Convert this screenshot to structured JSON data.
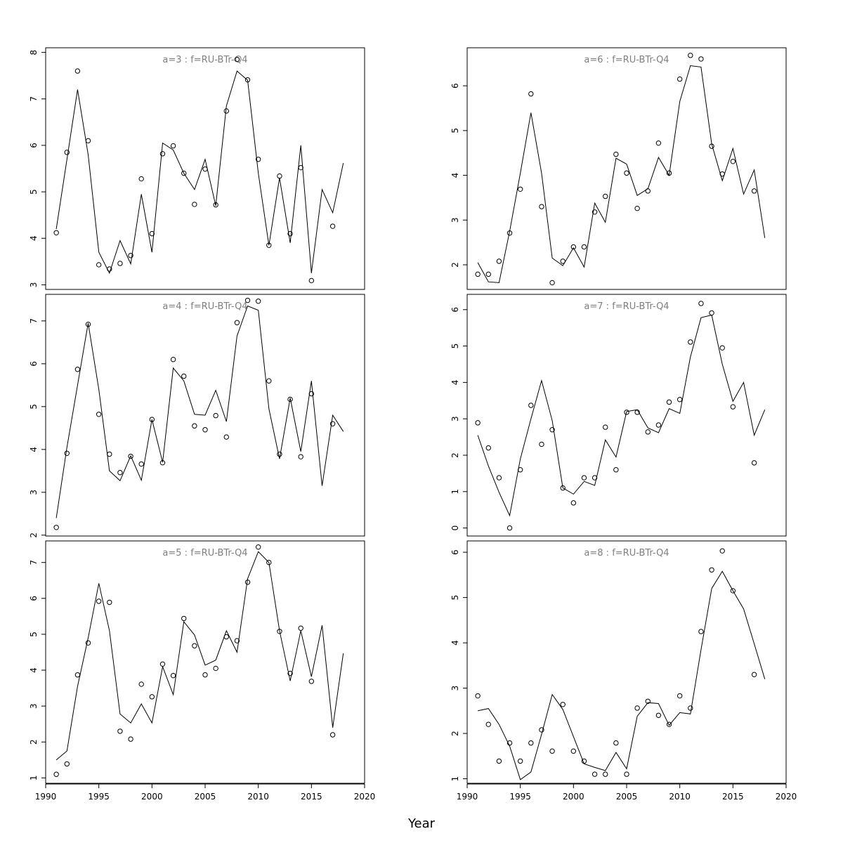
{
  "figure": {
    "xlabel": "Year"
  },
  "chart_data": [
    {
      "type": "line",
      "title": "a=3  :  f=RU-BTr-Q4",
      "xlim": [
        1990,
        2020
      ],
      "ylim": [
        2.9,
        8.1
      ],
      "yticks": [
        3,
        4,
        5,
        6,
        7,
        8
      ],
      "fitted": {
        "x": [
          1991,
          1992,
          1993,
          1994,
          1995,
          1996,
          1997,
          1998,
          1999,
          2000,
          2001,
          2002,
          2003,
          2004,
          2005,
          2006,
          2007,
          2008,
          2009,
          2010,
          2011,
          2012,
          2013,
          2014,
          2015,
          2016,
          2017,
          2018
        ],
        "y": [
          4.2,
          5.7,
          7.2,
          5.8,
          3.7,
          3.25,
          3.95,
          3.45,
          4.95,
          3.7,
          6.05,
          5.9,
          5.4,
          5.05,
          5.7,
          4.7,
          6.85,
          7.6,
          7.4,
          5.4,
          3.85,
          5.3,
          3.9,
          6.0,
          3.25,
          5.05,
          4.55,
          5.62
        ]
      },
      "observed": {
        "x": [
          1991,
          1992,
          1993,
          1994,
          1995,
          1996,
          1997,
          1998,
          1999,
          2000,
          2001,
          2002,
          2003,
          2004,
          2005,
          2006,
          2007,
          2008,
          2009,
          2010,
          2011,
          2012,
          2013,
          2014,
          2015,
          2017
        ],
        "y": [
          4.12,
          5.85,
          7.6,
          6.1,
          3.43,
          3.34,
          3.46,
          3.63,
          5.28,
          4.1,
          5.82,
          5.99,
          5.4,
          4.73,
          5.49,
          4.72,
          6.74,
          7.85,
          7.41,
          5.7,
          3.85,
          5.34,
          4.1,
          5.52,
          3.09,
          4.26
        ]
      }
    },
    {
      "type": "line",
      "title": "a=6  :  f=RU-BTr-Q4",
      "xlim": [
        1990,
        2020
      ],
      "ylim": [
        1.45,
        6.85
      ],
      "yticks": [
        2,
        3,
        4,
        5,
        6
      ],
      "fitted": {
        "x": [
          1991,
          1992,
          1993,
          1994,
          1995,
          1996,
          1997,
          1998,
          1999,
          2000,
          2001,
          2002,
          2003,
          2004,
          2005,
          2006,
          2007,
          2008,
          2009,
          2010,
          2011,
          2012,
          2013,
          2014,
          2015,
          2016,
          2017,
          2018
        ],
        "y": [
          2.05,
          1.62,
          1.6,
          2.75,
          4.05,
          5.4,
          4.05,
          2.15,
          1.98,
          2.38,
          1.95,
          3.38,
          2.95,
          4.38,
          4.25,
          3.55,
          3.7,
          4.4,
          4.0,
          5.65,
          6.45,
          6.42,
          4.7,
          3.88,
          4.6,
          3.58,
          4.12,
          2.6
        ]
      },
      "observed": {
        "x": [
          1991,
          1992,
          1993,
          1994,
          1995,
          1996,
          1997,
          1998,
          1999,
          2000,
          2001,
          2002,
          2003,
          2004,
          2005,
          2006,
          2007,
          2008,
          2009,
          2010,
          2011,
          2012,
          2013,
          2014,
          2015,
          2017
        ],
        "y": [
          1.79,
          1.79,
          2.08,
          2.71,
          3.69,
          5.82,
          3.3,
          1.6,
          2.08,
          2.4,
          2.4,
          3.18,
          3.53,
          4.47,
          4.05,
          3.26,
          3.65,
          4.72,
          4.05,
          6.15,
          6.68,
          6.6,
          4.65,
          4.03,
          4.31,
          3.65
        ]
      }
    },
    {
      "type": "line",
      "title": "a=4  :  f=RU-BTr-Q4",
      "xlim": [
        1990,
        2020
      ],
      "ylim": [
        1.98,
        7.62
      ],
      "yticks": [
        2,
        3,
        4,
        5,
        6,
        7
      ],
      "fitted": {
        "x": [
          1991,
          1992,
          1993,
          1994,
          1995,
          1996,
          1997,
          1998,
          1999,
          2000,
          2001,
          2002,
          2003,
          2004,
          2005,
          2006,
          2007,
          2008,
          2009,
          2010,
          2011,
          2012,
          2013,
          2014,
          2015,
          2016,
          2017,
          2018
        ],
        "y": [
          2.4,
          4.05,
          5.5,
          6.95,
          5.4,
          3.5,
          3.27,
          3.85,
          3.28,
          4.7,
          3.7,
          5.9,
          5.6,
          4.82,
          4.8,
          5.38,
          4.65,
          6.65,
          7.35,
          7.25,
          4.95,
          3.78,
          5.2,
          3.95,
          5.6,
          3.15,
          4.8,
          4.42
        ]
      },
      "observed": {
        "x": [
          1991,
          1992,
          1993,
          1994,
          1995,
          1996,
          1997,
          1998,
          1999,
          2000,
          2001,
          2002,
          2003,
          2004,
          2005,
          2006,
          2007,
          2008,
          2009,
          2010,
          2011,
          2012,
          2013,
          2014,
          2015,
          2017
        ],
        "y": [
          2.18,
          3.91,
          5.87,
          6.92,
          4.82,
          3.89,
          3.46,
          3.84,
          3.66,
          4.7,
          3.69,
          6.1,
          5.71,
          4.55,
          4.46,
          4.79,
          4.29,
          6.96,
          7.48,
          7.46,
          5.6,
          3.89,
          5.17,
          3.83,
          5.3,
          4.6
        ]
      }
    },
    {
      "type": "line",
      "title": "a=7  :  f=RU-BTr-Q4",
      "xlim": [
        1990,
        2020
      ],
      "ylim": [
        -0.22,
        6.42
      ],
      "yticks": [
        0,
        1,
        2,
        3,
        4,
        5,
        6
      ],
      "fitted": {
        "x": [
          1991,
          1992,
          1993,
          1994,
          1995,
          1996,
          1997,
          1998,
          1999,
          2000,
          2001,
          2002,
          2003,
          2004,
          2005,
          2006,
          2007,
          2008,
          2009,
          2010,
          2011,
          2012,
          2013,
          2014,
          2015,
          2016,
          2017,
          2018
        ],
        "y": [
          2.55,
          1.7,
          0.98,
          0.34,
          1.9,
          3.0,
          4.05,
          2.95,
          1.1,
          0.93,
          1.28,
          1.17,
          2.42,
          1.95,
          3.2,
          3.25,
          2.75,
          2.62,
          3.28,
          3.15,
          4.7,
          5.78,
          5.85,
          4.5,
          3.48,
          4.0,
          2.55,
          3.25
        ]
      },
      "observed": {
        "x": [
          1991,
          1992,
          1993,
          1994,
          1995,
          1996,
          1997,
          1998,
          1999,
          2000,
          2001,
          2002,
          2003,
          2004,
          2005,
          2006,
          2007,
          2008,
          2009,
          2010,
          2011,
          2012,
          2013,
          2014,
          2015,
          2017
        ],
        "y": [
          2.89,
          2.2,
          1.38,
          0.0,
          1.6,
          3.37,
          2.3,
          2.7,
          1.1,
          0.69,
          1.38,
          1.38,
          2.77,
          1.6,
          3.18,
          3.18,
          2.64,
          2.83,
          3.46,
          3.53,
          5.11,
          6.17,
          5.91,
          4.95,
          3.33,
          1.79
        ]
      }
    },
    {
      "type": "line",
      "title": "a=5  :  f=RU-BTr-Q4",
      "xlim": [
        1990,
        2020
      ],
      "ylim": [
        0.85,
        7.6
      ],
      "yticks": [
        1,
        2,
        3,
        4,
        5,
        6,
        7
      ],
      "fitted": {
        "x": [
          1991,
          1992,
          1993,
          1994,
          1995,
          1996,
          1997,
          1998,
          1999,
          2000,
          2001,
          2002,
          2003,
          2004,
          2005,
          2006,
          2007,
          2008,
          2009,
          2010,
          2011,
          2012,
          2013,
          2014,
          2015,
          2016,
          2017,
          2018
        ],
        "y": [
          1.5,
          1.75,
          3.55,
          4.9,
          6.42,
          5.1,
          2.78,
          2.53,
          3.06,
          2.53,
          4.1,
          3.32,
          5.35,
          4.98,
          4.14,
          4.28,
          5.1,
          4.5,
          6.55,
          7.3,
          7.0,
          5.1,
          3.7,
          5.1,
          3.82,
          5.25,
          2.4,
          4.47
        ]
      },
      "observed": {
        "x": [
          1991,
          1992,
          1993,
          1994,
          1995,
          1996,
          1997,
          1998,
          1999,
          2000,
          2001,
          2002,
          2003,
          2004,
          2005,
          2006,
          2007,
          2008,
          2009,
          2010,
          2011,
          2012,
          2013,
          2014,
          2015,
          2017
        ],
        "y": [
          1.1,
          1.39,
          3.87,
          4.76,
          5.92,
          5.89,
          2.3,
          2.08,
          3.61,
          3.26,
          4.17,
          3.85,
          5.44,
          4.68,
          3.87,
          4.05,
          4.93,
          4.82,
          6.45,
          7.43,
          7.0,
          5.08,
          3.91,
          5.17,
          3.69,
          2.2
        ]
      }
    },
    {
      "type": "line",
      "title": "a=8  :  f=RU-BTr-Q4",
      "xlim": [
        1990,
        2020
      ],
      "ylim": [
        0.9,
        6.25
      ],
      "yticks": [
        1,
        2,
        3,
        4,
        5,
        6
      ],
      "fitted": {
        "x": [
          1991,
          1992,
          1993,
          1994,
          1995,
          1996,
          1997,
          1998,
          1999,
          2000,
          2001,
          2002,
          2003,
          2004,
          2005,
          2006,
          2007,
          2008,
          2009,
          2010,
          2011,
          2012,
          2013,
          2014,
          2015,
          2016,
          2017,
          2018
        ],
        "y": [
          2.5,
          2.55,
          2.2,
          1.72,
          0.98,
          1.15,
          1.98,
          2.86,
          2.53,
          1.93,
          1.33,
          1.25,
          1.18,
          1.58,
          1.22,
          2.38,
          2.68,
          2.66,
          2.18,
          2.46,
          2.43,
          3.85,
          5.2,
          5.58,
          5.15,
          4.75,
          3.98,
          3.2
        ]
      },
      "observed": {
        "x": [
          1991,
          1992,
          1993,
          1994,
          1995,
          1996,
          1997,
          1998,
          1999,
          2000,
          2001,
          2002,
          2003,
          2004,
          2005,
          2006,
          2007,
          2008,
          2009,
          2010,
          2011,
          2012,
          2013,
          2014,
          2015,
          2017
        ],
        "y": [
          2.83,
          2.2,
          1.39,
          1.79,
          1.39,
          1.79,
          2.08,
          1.61,
          2.64,
          1.61,
          1.39,
          1.1,
          1.1,
          1.79,
          1.1,
          2.56,
          2.71,
          2.4,
          2.2,
          2.83,
          2.56,
          4.25,
          5.61,
          6.03,
          5.15,
          3.3
        ]
      }
    }
  ]
}
